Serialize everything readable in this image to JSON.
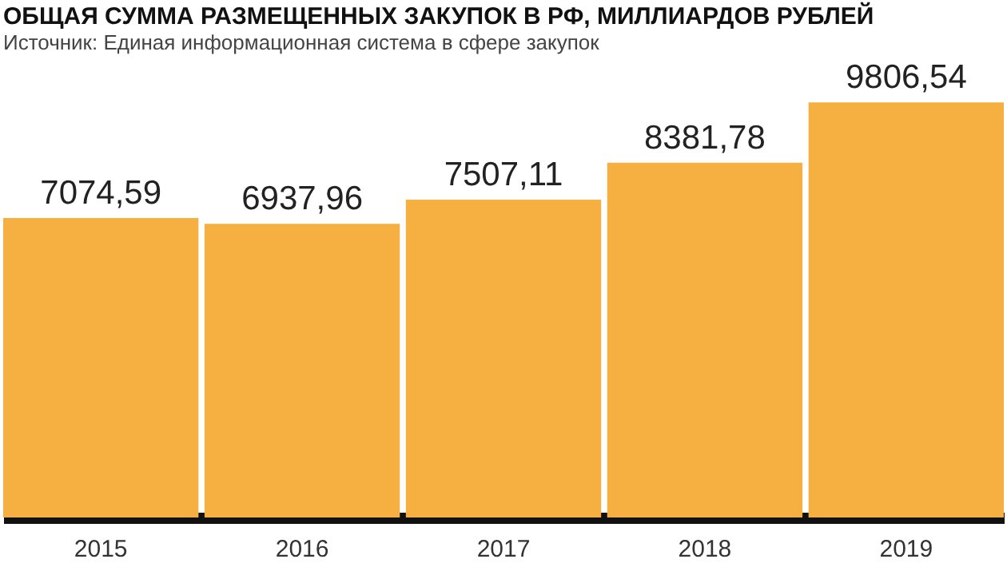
{
  "chart_data": {
    "type": "bar",
    "title": "ОБЩАЯ СУММА РАЗМЕЩЕННЫХ ЗАКУПОК В РФ, МИЛЛИАРДОВ РУБЛЕЙ",
    "annotations": [
      "Источник: Единая информационная система в сфере закупок"
    ],
    "categories": [
      "2015",
      "2016",
      "2017",
      "2018",
      "2019"
    ],
    "values": [
      7074.59,
      6937.96,
      7507.11,
      8381.78,
      9806.54
    ],
    "value_labels": [
      "7074,59",
      "6937,96",
      "7507,11",
      "8381,78",
      "9806,54"
    ],
    "color": "#f5b041",
    "grid": false
  }
}
